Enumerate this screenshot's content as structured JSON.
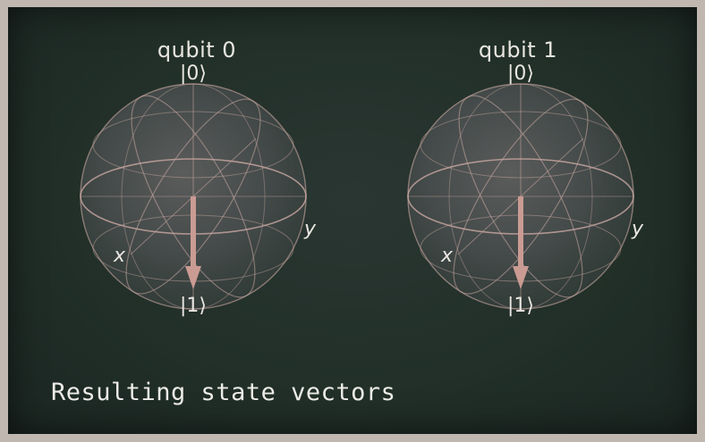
{
  "spheres": [
    {
      "title": "qubit 0",
      "top_label": "|0⟩",
      "bottom_label": "|1⟩",
      "x_label": "x",
      "y_label": "y",
      "state": "|1⟩"
    },
    {
      "title": "qubit 1",
      "top_label": "|0⟩",
      "bottom_label": "|1⟩",
      "x_label": "x",
      "y_label": "y",
      "state": "|1⟩"
    }
  ],
  "caption": "Resulting state vectors",
  "colors": {
    "board": "#223029",
    "frame": "#bfb7b0",
    "sphere_line": "#c9a8a2",
    "vector": "#c99b93",
    "text": "#e9e6e1"
  }
}
